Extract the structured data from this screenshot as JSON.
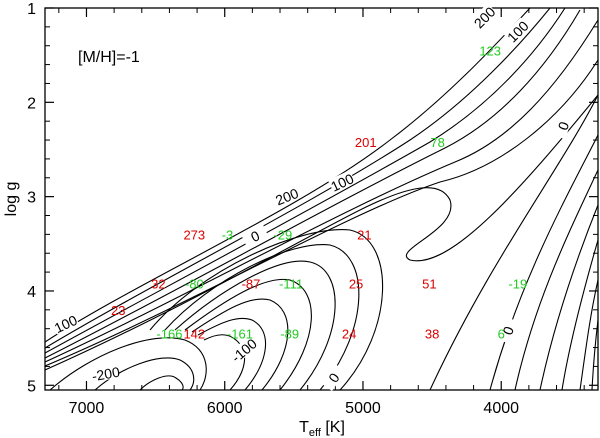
{
  "chart_data": {
    "type": "contour",
    "annotation": "[M/H]=-1",
    "xlabel": {
      "main": "T",
      "sub": "eff",
      "unit": " [K]"
    },
    "ylabel": "log g",
    "xlim": [
      7300,
      3300
    ],
    "ylim": [
      5.05,
      1.0
    ],
    "x_ticks": [
      7000,
      6000,
      5000,
      4000
    ],
    "y_ticks": [
      1,
      2,
      3,
      4,
      5
    ],
    "colors": {
      "red": "#dd0000",
      "green": "#22cc22",
      "line": "#000000"
    },
    "contour_labels": [
      {
        "text": "200",
        "teff": 4120,
        "logg": 1.1,
        "angle": -45
      },
      {
        "text": "100",
        "teff": 3880,
        "logg": 1.25,
        "angle": -45
      },
      {
        "text": "0",
        "teff": 3550,
        "logg": 2.25,
        "angle": -70
      },
      {
        "text": "200",
        "teff": 5550,
        "logg": 3.0,
        "angle": -22
      },
      {
        "text": "100",
        "teff": 5150,
        "logg": 2.85,
        "angle": -25
      },
      {
        "text": "0",
        "teff": 5780,
        "logg": 3.42,
        "angle": -25
      },
      {
        "text": "-100",
        "teff": 5860,
        "logg": 4.63,
        "angle": -40
      },
      {
        "text": "-200",
        "teff": 6860,
        "logg": 4.88,
        "angle": -10
      },
      {
        "text": "100",
        "teff": 7150,
        "logg": 4.35,
        "angle": -25
      },
      {
        "text": "0",
        "teff": 5210,
        "logg": 4.92,
        "angle": -55
      },
      {
        "text": "0",
        "teff": 3950,
        "logg": 4.42,
        "angle": -70
      }
    ],
    "points": [
      {
        "text": "123",
        "teff": 4080,
        "logg": 1.45,
        "color": "green"
      },
      {
        "text": "201",
        "teff": 4980,
        "logg": 2.42,
        "color": "red"
      },
      {
        "text": "78",
        "teff": 4460,
        "logg": 2.42,
        "color": "green"
      },
      {
        "text": "273",
        "teff": 6220,
        "logg": 3.4,
        "color": "red"
      },
      {
        "text": "-3",
        "teff": 5980,
        "logg": 3.4,
        "color": "green"
      },
      {
        "text": "-29",
        "teff": 5580,
        "logg": 3.4,
        "color": "green"
      },
      {
        "text": "21",
        "teff": 4990,
        "logg": 3.4,
        "color": "red"
      },
      {
        "text": "32",
        "teff": 6480,
        "logg": 3.92,
        "color": "red"
      },
      {
        "text": "-80",
        "teff": 6220,
        "logg": 3.92,
        "color": "green"
      },
      {
        "text": "-87",
        "teff": 5810,
        "logg": 3.92,
        "color": "red"
      },
      {
        "text": "-111",
        "teff": 5520,
        "logg": 3.92,
        "color": "green"
      },
      {
        "text": "25",
        "teff": 5050,
        "logg": 3.92,
        "color": "red"
      },
      {
        "text": "51",
        "teff": 4520,
        "logg": 3.92,
        "color": "red"
      },
      {
        "text": "-19",
        "teff": 3880,
        "logg": 3.92,
        "color": "green"
      },
      {
        "text": "23",
        "teff": 6770,
        "logg": 4.2,
        "color": "red"
      },
      {
        "text": "-166",
        "teff": 6400,
        "logg": 4.45,
        "color": "green"
      },
      {
        "text": "142",
        "teff": 6220,
        "logg": 4.45,
        "color": "red"
      },
      {
        "text": "-161",
        "teff": 5890,
        "logg": 4.45,
        "color": "green"
      },
      {
        "text": "-89",
        "teff": 5530,
        "logg": 4.45,
        "color": "green"
      },
      {
        "text": "24",
        "teff": 5100,
        "logg": 4.45,
        "color": "red"
      },
      {
        "text": "38",
        "teff": 4500,
        "logg": 4.45,
        "color": "red"
      },
      {
        "text": "6",
        "teff": 4000,
        "logg": 4.45,
        "color": "green"
      }
    ]
  }
}
